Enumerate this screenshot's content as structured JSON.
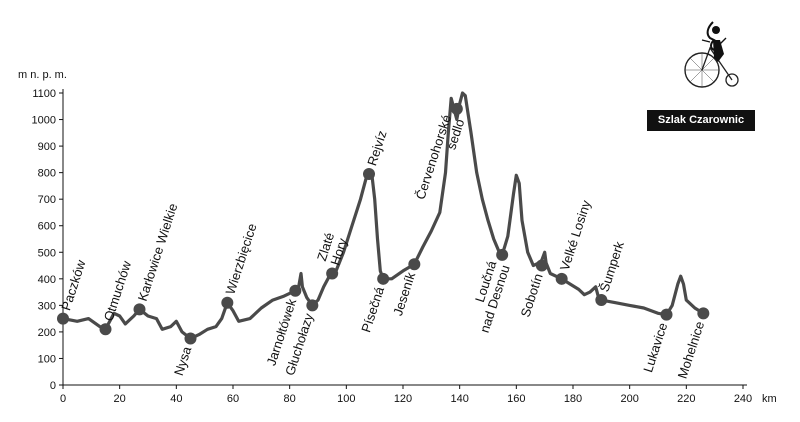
{
  "chart_data": {
    "type": "line",
    "yunit": "m n. p. m.",
    "xunit": "km",
    "xlim": [
      0,
      240
    ],
    "ylim": [
      0,
      1100
    ],
    "xticks": [
      0,
      20,
      40,
      60,
      80,
      100,
      120,
      140,
      160,
      180,
      200,
      220,
      240
    ],
    "yticks": [
      0,
      100,
      200,
      300,
      400,
      500,
      600,
      700,
      800,
      900,
      1000,
      1100
    ],
    "grid": false,
    "profile": [
      [
        0,
        250
      ],
      [
        5,
        240
      ],
      [
        9,
        250
      ],
      [
        13,
        220
      ],
      [
        15,
        210
      ],
      [
        18,
        270
      ],
      [
        20,
        260
      ],
      [
        22,
        230
      ],
      [
        25,
        260
      ],
      [
        27,
        285
      ],
      [
        30,
        260
      ],
      [
        33,
        250
      ],
      [
        35,
        210
      ],
      [
        38,
        220
      ],
      [
        40,
        240
      ],
      [
        42,
        200
      ],
      [
        45,
        175
      ],
      [
        48,
        190
      ],
      [
        51,
        210
      ],
      [
        54,
        220
      ],
      [
        56,
        250
      ],
      [
        58,
        310
      ],
      [
        60,
        280
      ],
      [
        62,
        240
      ],
      [
        66,
        250
      ],
      [
        70,
        290
      ],
      [
        74,
        320
      ],
      [
        78,
        335
      ],
      [
        81,
        350
      ],
      [
        83,
        360
      ],
      [
        83.5,
        390
      ],
      [
        84,
        420
      ],
      [
        84.5,
        370
      ],
      [
        86,
        330
      ],
      [
        88,
        300
      ],
      [
        90,
        320
      ],
      [
        92,
        370
      ],
      [
        94,
        410
      ],
      [
        96,
        420
      ],
      [
        99,
        500
      ],
      [
        102,
        600
      ],
      [
        105,
        700
      ],
      [
        107,
        780
      ],
      [
        109,
        795
      ],
      [
        110,
        700
      ],
      [
        111,
        550
      ],
      [
        112,
        430
      ],
      [
        113,
        400
      ],
      [
        116,
        400
      ],
      [
        120,
        430
      ],
      [
        124,
        455
      ],
      [
        127,
        520
      ],
      [
        130,
        580
      ],
      [
        133,
        650
      ],
      [
        135,
        800
      ],
      [
        136,
        950
      ],
      [
        137,
        1080
      ],
      [
        138,
        1040
      ],
      [
        139,
        1000
      ],
      [
        140,
        1060
      ],
      [
        141,
        1100
      ],
      [
        142,
        1090
      ],
      [
        144,
        950
      ],
      [
        146,
        800
      ],
      [
        148,
        700
      ],
      [
        150,
        620
      ],
      [
        152,
        550
      ],
      [
        154,
        500
      ],
      [
        155,
        490
      ],
      [
        157,
        560
      ],
      [
        159,
        720
      ],
      [
        160,
        790
      ],
      [
        161,
        760
      ],
      [
        162,
        620
      ],
      [
        164,
        500
      ],
      [
        166,
        450
      ],
      [
        168,
        460
      ],
      [
        169,
        470
      ],
      [
        170,
        500
      ],
      [
        170.5,
        460
      ],
      [
        172,
        420
      ],
      [
        174,
        410
      ],
      [
        176,
        400
      ],
      [
        179,
        380
      ],
      [
        182,
        360
      ],
      [
        184,
        340
      ],
      [
        186,
        350
      ],
      [
        188,
        370
      ],
      [
        189,
        330
      ],
      [
        190,
        320
      ],
      [
        195,
        310
      ],
      [
        200,
        300
      ],
      [
        205,
        290
      ],
      [
        210,
        270
      ],
      [
        213,
        265
      ],
      [
        215,
        300
      ],
      [
        217,
        380
      ],
      [
        218,
        410
      ],
      [
        219,
        380
      ],
      [
        220,
        320
      ],
      [
        223,
        290
      ],
      [
        226,
        270
      ]
    ],
    "places": [
      {
        "name": "Paczków",
        "km": 0,
        "alt": 250,
        "side": "above",
        "lines": [
          "Paczków"
        ]
      },
      {
        "name": "Otmuchów",
        "km": 15,
        "alt": 210,
        "side": "above",
        "lines": [
          "Otmuchów"
        ]
      },
      {
        "name": "Karłowice Wielkie",
        "km": 27,
        "alt": 285,
        "side": "above",
        "lines": [
          "Karłowice Wielkie"
        ]
      },
      {
        "name": "Nysa",
        "km": 45,
        "alt": 175,
        "side": "below",
        "lines": [
          "Nysa"
        ]
      },
      {
        "name": "Wierzbięcice",
        "km": 58,
        "alt": 310,
        "side": "above",
        "lines": [
          "Wierzbięcice"
        ]
      },
      {
        "name": "Jarnołtówek",
        "km": 82,
        "alt": 355,
        "side": "below",
        "lines": [
          "Jarnołtówek"
        ]
      },
      {
        "name": "Głuchołazy",
        "km": 88,
        "alt": 300,
        "side": "below",
        "lines": [
          "Głuchołazy"
        ]
      },
      {
        "name": "Zlaté Hory",
        "km": 95,
        "alt": 420,
        "side": "above",
        "lines": [
          "Zlaté",
          "Hory"
        ]
      },
      {
        "name": "Rejvíz",
        "km": 108,
        "alt": 795,
        "side": "above",
        "lines": [
          "Rejvíz"
        ]
      },
      {
        "name": "Písečná",
        "km": 113,
        "alt": 400,
        "side": "below",
        "lines": [
          "Písečná"
        ]
      },
      {
        "name": "Jeseník",
        "km": 124,
        "alt": 455,
        "side": "below",
        "lines": [
          "Jeseník"
        ]
      },
      {
        "name": "Červenohorské sedlo",
        "km": 139,
        "alt": 1040,
        "side": "below",
        "lines": [
          "Červenohorské",
          "sedlo"
        ]
      },
      {
        "name": "Loučná nad Desnou",
        "km": 155,
        "alt": 490,
        "side": "below",
        "lines": [
          "Loučná",
          "nad Desnou"
        ]
      },
      {
        "name": "Sobotín",
        "km": 169,
        "alt": 450,
        "side": "below",
        "lines": [
          "Sobotín"
        ]
      },
      {
        "name": "Velké Losiny",
        "km": 176,
        "alt": 400,
        "side": "above",
        "lines": [
          "Velké Losiny"
        ]
      },
      {
        "name": "Šumperk",
        "km": 190,
        "alt": 320,
        "side": "above",
        "lines": [
          "Šumperk"
        ]
      },
      {
        "name": "Lukavice",
        "km": 213,
        "alt": 265,
        "side": "below",
        "lines": [
          "Lukavice"
        ]
      },
      {
        "name": "Mohelnice",
        "km": 226,
        "alt": 270,
        "side": "below",
        "lines": [
          "Mohelnice"
        ]
      }
    ]
  },
  "badge": "Szlak Czarownic",
  "logo_icon": "penny-farthing-cyclist-icon"
}
